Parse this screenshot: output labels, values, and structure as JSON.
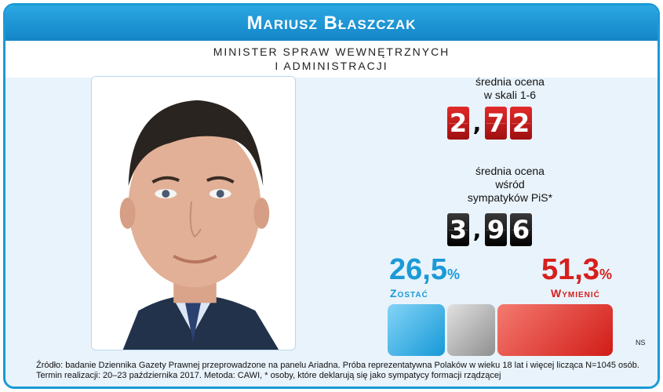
{
  "header": {
    "name": "Mariusz Błaszczak"
  },
  "position": {
    "line1": "MINISTER SPRAW WEWNĘTRZNYCH",
    "line2": "I ADMINISTRACJI"
  },
  "metric_overall": {
    "label_line1": "średnia ocena",
    "label_line2": "w skali 1-6",
    "digit1": "2",
    "separator": ",",
    "digit2": "7",
    "digit3": "2"
  },
  "metric_supporters": {
    "label_line1": "średnia ocena",
    "label_line2": "wśród",
    "label_line3": "sympatyków PiS*",
    "digit1": "3",
    "separator": ",",
    "digit2": "9",
    "digit3": "6"
  },
  "stay": {
    "value": "26,5",
    "unit": "%",
    "label": "Zostać",
    "share": 0.265,
    "color": "#1b9ad7"
  },
  "replace": {
    "value": "51,3",
    "unit": "%",
    "label": "Wymienić",
    "share": 0.513,
    "color": "#d6201d"
  },
  "ns": "NS",
  "footer": {
    "line1": "Źródło: badanie Dziennika Gazety Prawnej przeprowadzone na panelu Ariadna. Próba reprezentatywna Polaków w wieku 18 lat i więcej licząca N=1045 osób.",
    "line2": "Termin realizacji: 20–23 października 2017. Metoda: CAWI, * osoby, które deklarują się jako sympatycy formacji rządzącej"
  }
}
